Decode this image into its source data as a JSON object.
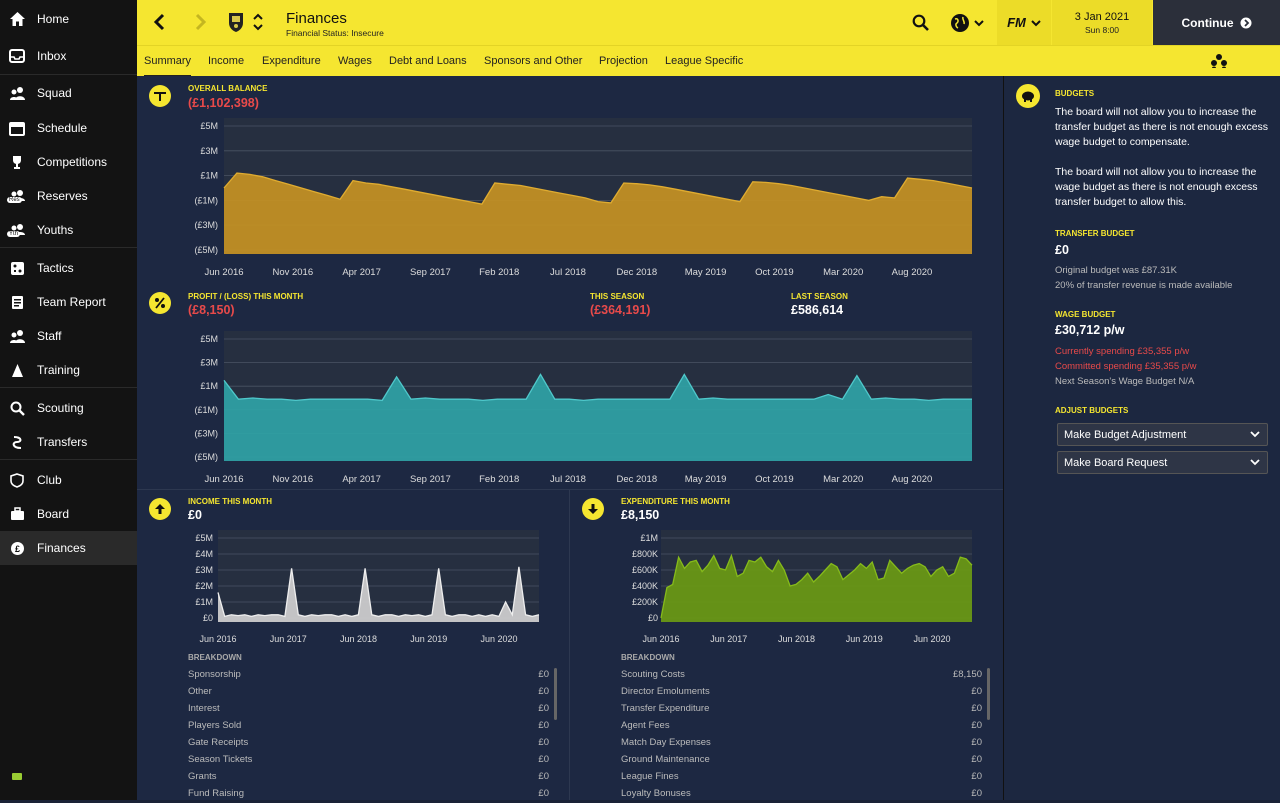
{
  "sidebar": {
    "items": [
      {
        "label": "Home",
        "icon": "home-icon"
      },
      {
        "label": "Inbox",
        "icon": "inbox-icon"
      },
      {
        "label": "Squad",
        "icon": "squad-icon"
      },
      {
        "label": "Schedule",
        "icon": "calendar-icon"
      },
      {
        "label": "Competitions",
        "icon": "trophy-icon"
      },
      {
        "label": "Reserves",
        "icon": "reserves-icon",
        "badge": "Res"
      },
      {
        "label": "Youths",
        "icon": "youths-icon",
        "badge": "Yth"
      },
      {
        "label": "Tactics",
        "icon": "tactics-icon"
      },
      {
        "label": "Team Report",
        "icon": "team-report-icon"
      },
      {
        "label": "Staff",
        "icon": "staff-icon"
      },
      {
        "label": "Training",
        "icon": "training-icon"
      },
      {
        "label": "Scouting",
        "icon": "search-icon"
      },
      {
        "label": "Transfers",
        "icon": "transfers-icon"
      },
      {
        "label": "Club",
        "icon": "club-icon"
      },
      {
        "label": "Board",
        "icon": "board-icon"
      },
      {
        "label": "Finances",
        "icon": "finances-icon",
        "active": true
      }
    ]
  },
  "header": {
    "title": "Finances",
    "subtitle": "Financial Status: Insecure",
    "fm_label": "FM",
    "date": "3 Jan 2021",
    "time": "Sun 8:00",
    "continue_label": "Continue"
  },
  "tabs": [
    "Summary",
    "Income",
    "Expenditure",
    "Wages",
    "Debt and Loans",
    "Sponsors and Other",
    "Projection",
    "League Specific"
  ],
  "overall": {
    "label": "OVERALL BALANCE",
    "value": "(£1,102,398)"
  },
  "profit": {
    "label": "PROFIT / (LOSS) THIS MONTH",
    "value": "(£8,150)",
    "season_label": "THIS SEASON",
    "season_value": "(£364,191)",
    "last_label": "LAST SEASON",
    "last_value": "£586,614"
  },
  "income": {
    "label": "INCOME THIS MONTH",
    "value": "£0"
  },
  "expenditure": {
    "label": "EXPENDITURE THIS MONTH",
    "value": "£8,150"
  },
  "breakdown_label": "BREAKDOWN",
  "income_breakdown": [
    {
      "name": "Sponsorship",
      "value": "£0"
    },
    {
      "name": "Other",
      "value": "£0"
    },
    {
      "name": "Interest",
      "value": "£0"
    },
    {
      "name": "Players Sold",
      "value": "£0"
    },
    {
      "name": "Gate Receipts",
      "value": "£0"
    },
    {
      "name": "Season Tickets",
      "value": "£0"
    },
    {
      "name": "Grants",
      "value": "£0"
    },
    {
      "name": "Fund Raising",
      "value": "£0"
    }
  ],
  "expenditure_breakdown": [
    {
      "name": "Scouting Costs",
      "value": "£8,150"
    },
    {
      "name": "Director Emoluments",
      "value": "£0"
    },
    {
      "name": "Transfer Expenditure",
      "value": "£0"
    },
    {
      "name": "Agent Fees",
      "value": "£0"
    },
    {
      "name": "Match Day Expenses",
      "value": "£0"
    },
    {
      "name": "Ground Maintenance",
      "value": "£0"
    },
    {
      "name": "League Fines",
      "value": "£0"
    },
    {
      "name": "Loyalty Bonuses",
      "value": "£0"
    }
  ],
  "budgets": {
    "title": "BUDGETS",
    "text1": "The board will not allow you to increase the transfer budget as there is not enough excess wage budget to compensate.",
    "text2": "The board will not allow you to increase the wage budget as there is not enough excess transfer budget to allow this.",
    "transfer_label": "TRANSFER BUDGET",
    "transfer_value": "£0",
    "transfer_note1": "Original budget was £87.31K",
    "transfer_note2": "20% of transfer revenue is made available",
    "wage_label": "WAGE BUDGET",
    "wage_value": "£30,712 p/w",
    "wage_note1": "Currently spending £35,355 p/w",
    "wage_note2": "Committed spending £35,355 p/w",
    "wage_note3": "Next Season's Wage Budget N/A",
    "adjust_label": "ADJUST BUDGETS",
    "adjust_option": "Make Budget Adjustment",
    "request_option": "Make Board Request"
  },
  "colors": {
    "accent": "#f5e630",
    "balance": "#c69323",
    "profit": "#2fa3a6",
    "income": "#d0d0d0",
    "expenditure": "#6a9a14",
    "negative": "#e84a4a"
  },
  "chart_data": [
    {
      "type": "area",
      "title": "OVERALL BALANCE",
      "x_ticks": [
        "Jun 2016",
        "Nov 2016",
        "Apr 2017",
        "Sep 2017",
        "Feb 2018",
        "Jul 2018",
        "Dec 2018",
        "May 2019",
        "Oct 2019",
        "Mar 2020",
        "Aug 2020"
      ],
      "y_ticks": [
        "£5M",
        "£3M",
        "£1M",
        "(£1M)",
        "(£3M)",
        "(£5M)"
      ],
      "ylim": [
        -5,
        5
      ],
      "series": [
        {
          "values": [
            0,
            1.2,
            1.1,
            0.9,
            0.6,
            0.3,
            0,
            -0.3,
            -0.6,
            -0.9,
            0.6,
            0.4,
            0.3,
            0.1,
            -0.1,
            -0.3,
            -0.5,
            -0.7,
            -0.9,
            -1.1,
            -1.3,
            0.4,
            0.3,
            0.2,
            0,
            -0.2,
            -0.4,
            -0.6,
            -0.8,
            -1.1,
            -1.2,
            0.4,
            0.35,
            0.25,
            0.1,
            -0.1,
            -0.3,
            -0.5,
            -0.7,
            -0.9,
            -1.1,
            0.5,
            0.45,
            0.35,
            0.2,
            0,
            -0.2,
            -0.4,
            -0.6,
            -0.8,
            -1.0,
            -0.7,
            -0.8,
            0.8,
            0.7,
            0.6,
            0.4,
            0.2,
            0
          ]
        }
      ]
    },
    {
      "type": "area",
      "title": "PROFIT / (LOSS) THIS MONTH",
      "x_ticks": [
        "Jun 2016",
        "Nov 2016",
        "Apr 2017",
        "Sep 2017",
        "Feb 2018",
        "Jul 2018",
        "Dec 2018",
        "May 2019",
        "Oct 2019",
        "Mar 2020",
        "Aug 2020"
      ],
      "y_ticks": [
        "£5M",
        "£3M",
        "£1M",
        "(£1M)",
        "(£3M)",
        "(£5M)"
      ],
      "ylim": [
        -5,
        5
      ],
      "series": [
        {
          "values": [
            1.5,
            -0.1,
            0,
            -0.1,
            -0.1,
            -0.2,
            -0.1,
            -0.1,
            -0.1,
            -0.1,
            -0.1,
            -0.2,
            1.8,
            -0.1,
            0,
            -0.1,
            -0.1,
            -0.1,
            -0.2,
            -0.1,
            -0.1,
            -0.1,
            2.0,
            -0.1,
            -0.1,
            -0.2,
            -0.1,
            -0.1,
            -0.1,
            -0.1,
            -0.1,
            -0.1,
            2.0,
            -0.1,
            0,
            -0.1,
            -0.1,
            -0.1,
            -0.1,
            -0.1,
            -0.1,
            -0.1,
            0.3,
            -0.1,
            1.9,
            -0.1,
            0,
            -0.1,
            -0.1,
            -0.2,
            -0.1,
            -0.1,
            -0.1
          ]
        }
      ]
    },
    {
      "type": "area",
      "title": "INCOME THIS MONTH",
      "x_ticks": [
        "Jun 2016",
        "Jun 2017",
        "Jun 2018",
        "Jun 2019",
        "Jun 2020"
      ],
      "y_ticks": [
        "£5M",
        "£4M",
        "£3M",
        "£2M",
        "£1M",
        "£0"
      ],
      "ylim": [
        0,
        5
      ],
      "series": [
        {
          "values": [
            1.6,
            0.1,
            0.2,
            0.15,
            0.2,
            0.1,
            0.2,
            0.15,
            0.2,
            0.2,
            0.1,
            3.1,
            0.2,
            0.1,
            0.2,
            0.15,
            0.2,
            0.2,
            0.1,
            0.2,
            0.1,
            0.2,
            3.1,
            0.2,
            0.1,
            0.2,
            0.2,
            0.1,
            0.2,
            0.15,
            0.2,
            0.1,
            0.2,
            3.1,
            0.2,
            0.1,
            0.2,
            0.2,
            0.1,
            0.2,
            0.1,
            0.2,
            0.1,
            1.0,
            0.2,
            3.2,
            0.2,
            0.1,
            0.2
          ]
        }
      ]
    },
    {
      "type": "area",
      "title": "EXPENDITURE THIS MONTH",
      "x_ticks": [
        "Jun 2016",
        "Jun 2017",
        "Jun 2018",
        "Jun 2019",
        "Jun 2020"
      ],
      "y_ticks": [
        "£1M",
        "£800K",
        "£600K",
        "£400K",
        "£200K",
        "£0"
      ],
      "ylim": [
        0,
        1000
      ],
      "series": [
        {
          "values": [
            0,
            380,
            420,
            760,
            620,
            700,
            720,
            580,
            660,
            780,
            620,
            600,
            780,
            520,
            560,
            720,
            700,
            760,
            640,
            580,
            720,
            600,
            400,
            420,
            480,
            560,
            450,
            520,
            600,
            680,
            640,
            480,
            540,
            600,
            680,
            620,
            700,
            480,
            500,
            720,
            640,
            560,
            620,
            660,
            680,
            640,
            520,
            600,
            640,
            520,
            560,
            760,
            740,
            660
          ]
        }
      ]
    }
  ]
}
